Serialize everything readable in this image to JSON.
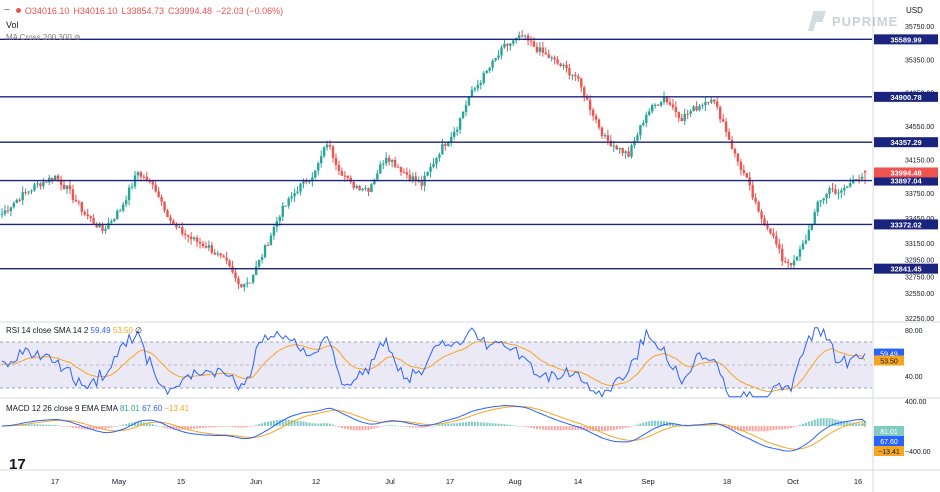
{
  "header": {
    "ohlc_open": "O34016.10",
    "ohlc_high": "H34016.10",
    "ohlc_low": "L33854.73",
    "ohlc_close": "C33994.48",
    "ohlc_change": "−22.03 (−0.06%)",
    "vol_label": "Vol",
    "ma_label": "MA Cross 200 300",
    "currency": "USD"
  },
  "brand": {
    "logo_text": "PUPRIME"
  },
  "rsi": {
    "label": "RSI 14 close SMA 14 2",
    "v1": "59.49",
    "v2": "53.50",
    "v3": "∅"
  },
  "macd": {
    "label": "MACD 12 26 close 9 EMA EMA",
    "v1": "81.01",
    "v2": "67.60",
    "v3": "−13.41"
  },
  "levels": [
    35589.99,
    34900.78,
    34357.29,
    33897.04,
    33372.02,
    32841.45
  ],
  "price_axis": [
    "35750.00",
    "35350.00",
    "34950.00",
    "34550.00",
    "34150.00",
    "33750.00",
    "33450.00",
    "33150.00",
    "32950.00",
    "32750.00",
    "32550.00",
    "32250.00"
  ],
  "current_price": 33994.48,
  "rsi_axis": [
    "80.00",
    "40.00"
  ],
  "rsi_values": {
    "rsi": 59.49,
    "sma": 53.5
  },
  "macd_axis": [
    "400.00",
    "−400.00"
  ],
  "macd_values": {
    "hist": 81.01,
    "macd": 67.6,
    "signal": -13.41
  },
  "time_axis": [
    "17",
    "May",
    "15",
    "Jun",
    "12",
    "Jul",
    "17",
    "Aug",
    "14",
    "Sep",
    "18",
    "Oct",
    "16"
  ],
  "colors": {
    "up": "#26a69a",
    "down": "#ef5350",
    "level": "#1a237e",
    "rsi": "#2962ff",
    "sma": "#f5a623",
    "rsi_band": "#ece9f7"
  },
  "chart_data": {
    "type": "candlestick",
    "ylim": [
      32250,
      35800
    ],
    "horizontal_levels": [
      35589.99,
      34900.78,
      34357.29,
      33897.04,
      33372.02,
      32841.45
    ],
    "last": {
      "open": 34016.1,
      "high": 34016.1,
      "low": 33854.73,
      "close": 33994.48
    },
    "anchors": [
      [
        0,
        33500
      ],
      [
        6,
        33700
      ],
      [
        12,
        33850
      ],
      [
        18,
        33950
      ],
      [
        22,
        33800
      ],
      [
        28,
        33500
      ],
      [
        34,
        33300
      ],
      [
        40,
        33550
      ],
      [
        46,
        34000
      ],
      [
        52,
        33800
      ],
      [
        58,
        33350
      ],
      [
        64,
        33200
      ],
      [
        70,
        33100
      ],
      [
        76,
        32900
      ],
      [
        80,
        32650
      ],
      [
        84,
        32700
      ],
      [
        88,
        33000
      ],
      [
        94,
        33500
      ],
      [
        100,
        33800
      ],
      [
        106,
        34000
      ],
      [
        110,
        34350
      ],
      [
        114,
        34050
      ],
      [
        118,
        33850
      ],
      [
        124,
        33800
      ],
      [
        130,
        34200
      ],
      [
        136,
        34000
      ],
      [
        142,
        33850
      ],
      [
        148,
        34250
      ],
      [
        154,
        34550
      ],
      [
        158,
        34900
      ],
      [
        164,
        35200
      ],
      [
        170,
        35500
      ],
      [
        176,
        35620
      ],
      [
        182,
        35450
      ],
      [
        188,
        35300
      ],
      [
        194,
        35150
      ],
      [
        200,
        34700
      ],
      [
        204,
        34400
      ],
      [
        208,
        34300
      ],
      [
        212,
        34200
      ],
      [
        218,
        34700
      ],
      [
        224,
        34900
      ],
      [
        230,
        34650
      ],
      [
        236,
        34800
      ],
      [
        240,
        34900
      ],
      [
        244,
        34600
      ],
      [
        248,
        34200
      ],
      [
        252,
        33900
      ],
      [
        256,
        33500
      ],
      [
        260,
        33300
      ],
      [
        264,
        32950
      ],
      [
        268,
        32900
      ],
      [
        272,
        33200
      ],
      [
        276,
        33600
      ],
      [
        280,
        33800
      ],
      [
        284,
        33750
      ],
      [
        288,
        33900
      ],
      [
        292,
        34000
      ]
    ]
  }
}
